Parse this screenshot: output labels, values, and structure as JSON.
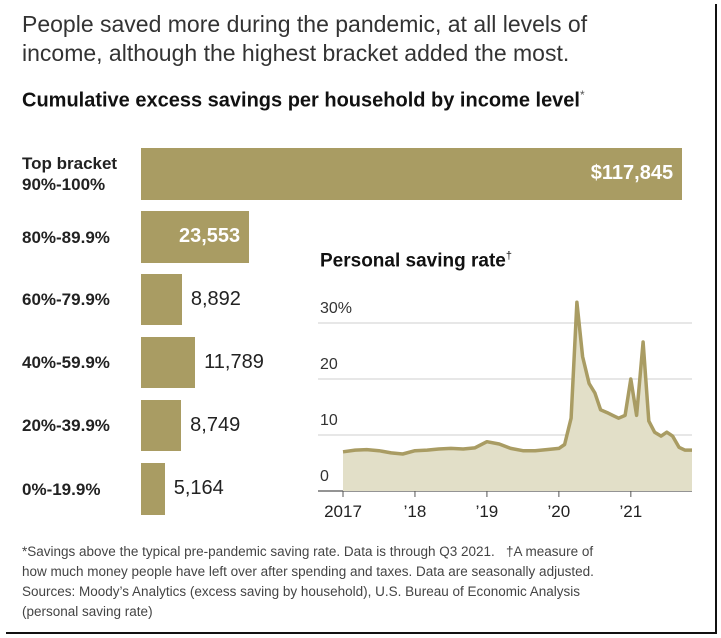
{
  "headline": "People saved more during the pandemic, at all levels of income, although the highest bracket added the most.",
  "main_title": "Cumulative excess savings per household by income level",
  "main_title_mark": "*",
  "inset_title": "Personal saving rate",
  "inset_title_mark": "†",
  "notes": {
    "line1": "*Savings above the typical pre-pandemic saving rate. Data is through Q3 2021.   †A measure of",
    "line2": "how much money people have left over after spending and taxes. Data are seasonally adjusted.",
    "line3": "Sources: Moody’s Analytics (excess saving by household), U.S. Bureau of Economic Analysis",
    "line4": "(personal saving rate)"
  },
  "colors": {
    "bar": "#a99c63",
    "line": "#a99c63",
    "area": "#e2dfc8",
    "grid": "#cfcfcf"
  },
  "chart_data": [
    {
      "type": "bar",
      "orientation": "horizontal",
      "title": "Cumulative excess savings per household by income level",
      "categories": [
        [
          "Top bracket",
          "90%-100%"
        ],
        [
          "80%-89.9%"
        ],
        [
          "60%-79.9%"
        ],
        [
          "40%-59.9%"
        ],
        [
          "20%-39.9%"
        ],
        [
          "0%-19.9%"
        ]
      ],
      "values": [
        117845,
        23553,
        8892,
        11789,
        8749,
        5164
      ],
      "labels": [
        "$117,845",
        "23,553",
        "8,892",
        "11,789",
        "8,749",
        "5,164"
      ],
      "xlim": [
        0,
        120000
      ]
    },
    {
      "type": "area",
      "title": "Personal saving rate",
      "ylim": [
        0,
        30
      ],
      "yticks": [
        0,
        10,
        20,
        30
      ],
      "ytick_labels": [
        "0",
        "10",
        "20",
        "30%"
      ],
      "xticks": [
        2017,
        2018,
        2019,
        2020,
        2021
      ],
      "xtick_labels": [
        "2017",
        "’18",
        "’19",
        "’20",
        "’21"
      ],
      "xlim": [
        2017,
        2021.85
      ],
      "grid": true,
      "x": [
        2017.0,
        2017.17,
        2017.33,
        2017.5,
        2017.67,
        2017.83,
        2018.0,
        2018.17,
        2018.33,
        2018.5,
        2018.67,
        2018.83,
        2019.0,
        2019.17,
        2019.33,
        2019.5,
        2019.67,
        2019.83,
        2020.0,
        2020.08,
        2020.17,
        2020.25,
        2020.33,
        2020.42,
        2020.5,
        2020.58,
        2020.67,
        2020.75,
        2020.83,
        2020.92,
        2021.0,
        2021.08,
        2021.17,
        2021.25,
        2021.33,
        2021.42,
        2021.5,
        2021.58,
        2021.67,
        2021.75,
        2021.85
      ],
      "y": [
        7.0,
        7.3,
        7.4,
        7.2,
        6.8,
        6.6,
        7.2,
        7.3,
        7.5,
        7.6,
        7.5,
        7.7,
        8.8,
        8.4,
        7.6,
        7.2,
        7.2,
        7.4,
        7.6,
        8.3,
        13.0,
        33.7,
        24.0,
        19.2,
        17.5,
        14.5,
        14.0,
        13.5,
        13.0,
        13.5,
        20.0,
        13.5,
        26.6,
        12.5,
        10.5,
        9.8,
        10.5,
        9.8,
        7.8,
        7.3,
        7.3
      ]
    }
  ]
}
